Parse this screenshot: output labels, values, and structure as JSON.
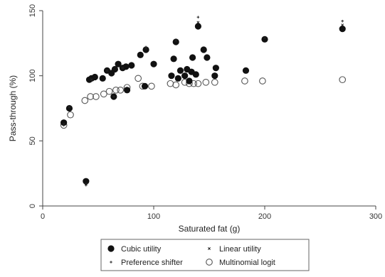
{
  "chart_data": {
    "type": "scatter",
    "title": "",
    "xlabel": "Saturated fat (g)",
    "ylabel": "Pass-through (%)",
    "xlim": [
      0,
      300
    ],
    "ylim": [
      0,
      150
    ],
    "xticks": [
      0,
      100,
      200,
      300
    ],
    "yticks": [
      0,
      50,
      100,
      150
    ],
    "grid": false,
    "legend_position": "bottom",
    "colors": {
      "axis": "#444444",
      "filled_marker": "#111111",
      "hollow_marker_stroke": "#555555",
      "legend_border": "#666666"
    },
    "series": [
      {
        "name": "Cubic utility",
        "marker": "filled-circle",
        "points": [
          [
            19,
            64
          ],
          [
            24,
            75
          ],
          [
            39,
            19
          ],
          [
            42,
            97
          ],
          [
            44,
            98
          ],
          [
            47,
            99
          ],
          [
            54,
            98
          ],
          [
            58,
            104
          ],
          [
            62,
            102
          ],
          [
            64,
            84
          ],
          [
            65,
            105
          ],
          [
            68,
            109
          ],
          [
            72,
            106
          ],
          [
            75,
            107
          ],
          [
            76,
            89
          ],
          [
            80,
            108
          ],
          [
            88,
            116
          ],
          [
            92,
            92
          ],
          [
            93,
            120
          ],
          [
            100,
            109
          ],
          [
            116,
            100
          ],
          [
            118,
            113
          ],
          [
            120,
            126
          ],
          [
            122,
            98
          ],
          [
            124,
            104
          ],
          [
            128,
            100
          ],
          [
            130,
            105
          ],
          [
            132,
            96
          ],
          [
            134,
            103
          ],
          [
            135,
            114
          ],
          [
            138,
            101
          ],
          [
            140,
            138
          ],
          [
            145,
            120
          ],
          [
            148,
            114
          ],
          [
            155,
            100
          ],
          [
            156,
            106
          ],
          [
            183,
            104
          ],
          [
            200,
            128
          ],
          [
            270,
            136
          ]
        ]
      },
      {
        "name": "Linear utility",
        "marker": "small-x",
        "points": [
          [
            19,
            63
          ],
          [
            24,
            76
          ],
          [
            39,
            17
          ],
          [
            44,
            97
          ],
          [
            58,
            104
          ],
          [
            72,
            106
          ],
          [
            93,
            121
          ],
          [
            120,
            127
          ],
          [
            140,
            141
          ],
          [
            200,
            129
          ],
          [
            270,
            139
          ]
        ]
      },
      {
        "name": "Preference shifter",
        "marker": "small-plus",
        "points": [
          [
            19,
            62
          ],
          [
            39,
            16
          ],
          [
            64,
            84
          ],
          [
            93,
            122
          ],
          [
            140,
            145
          ],
          [
            270,
            142
          ]
        ]
      },
      {
        "name": "Multinomial logit",
        "marker": "hollow-circle",
        "points": [
          [
            19,
            62
          ],
          [
            25,
            70
          ],
          [
            38,
            81
          ],
          [
            43,
            84
          ],
          [
            48,
            84
          ],
          [
            55,
            86
          ],
          [
            60,
            88
          ],
          [
            66,
            89
          ],
          [
            70,
            89
          ],
          [
            76,
            91
          ],
          [
            86,
            98
          ],
          [
            90,
            92
          ],
          [
            98,
            92
          ],
          [
            115,
            94
          ],
          [
            120,
            93
          ],
          [
            128,
            95
          ],
          [
            132,
            94
          ],
          [
            136,
            94
          ],
          [
            140,
            94
          ],
          [
            147,
            95
          ],
          [
            155,
            95
          ],
          [
            182,
            96
          ],
          [
            198,
            96
          ],
          [
            270,
            97
          ]
        ]
      }
    ]
  }
}
